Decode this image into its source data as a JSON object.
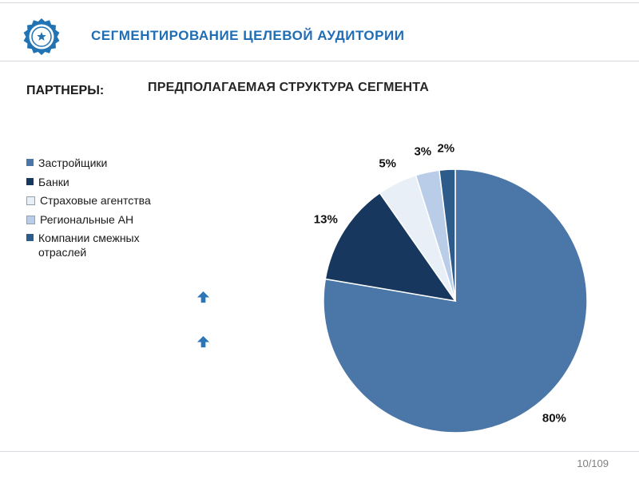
{
  "header": {
    "title": "СЕГМЕНТИРОВАНИЕ ЦЕЛЕВОЙ АУДИТОРИИ"
  },
  "partners": {
    "label": "ПАРТНЕРЫ:"
  },
  "footer": {
    "page": "10/109"
  },
  "icons": {
    "logo": "seal-badge",
    "arrows": [
      "arrow-up",
      "arrow-up"
    ]
  },
  "colors": {
    "accent": "#2173b4",
    "title_text": "#1f6db5",
    "body_text": "#1a1a1a",
    "footer_text": "#808080",
    "divider": "#d4dae0"
  },
  "chart_data": {
    "type": "pie",
    "title": "ПРЕДПОЛАГАЕМАЯ СТРУКТУРА СЕГМЕНТА",
    "labels": [
      "Застройщики",
      "Банки",
      "Страховые агентства",
      "Региональные АН",
      "Компании смежных отраслей"
    ],
    "values": [
      80,
      13,
      5,
      3,
      2
    ],
    "unit": "%",
    "data_labels": [
      "80%",
      "13%",
      "5%",
      "3%",
      "2%"
    ],
    "colors": [
      "#4b76a8",
      "#17375e",
      "#e9eff7",
      "#b9cde9",
      "#2e5c8a"
    ],
    "legend_position": "left",
    "start_angle_deg": 0,
    "direction": "clockwise"
  }
}
